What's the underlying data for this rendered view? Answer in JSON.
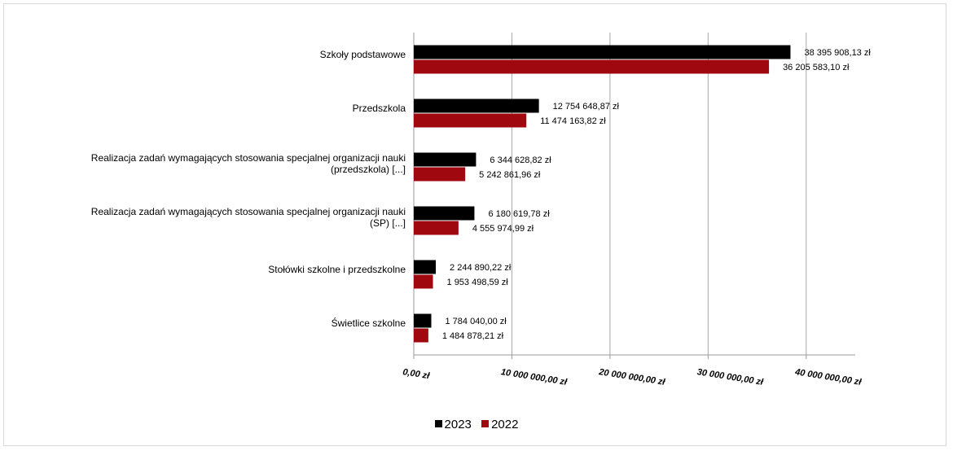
{
  "chart_data": {
    "type": "bar",
    "orientation": "horizontal",
    "categories": [
      [
        "Szkoły podstawowe"
      ],
      [
        "Przedszkola"
      ],
      [
        "Realizacja zadań wymagających stosowania specjalnej organizacji nauki",
        "(przedszkola) [...]"
      ],
      [
        "Realizacja zadań wymagających stosowania specjalnej organizacji nauki",
        "(SP) [...]"
      ],
      [
        "Stołówki szkolne i przedszkolne"
      ],
      [
        "Świetlice szkolne"
      ]
    ],
    "series": [
      {
        "name": "2023",
        "color": "#000000",
        "values": [
          38395908.13,
          12754648.87,
          6344628.82,
          6180619.78,
          2244890.22,
          1784040.0
        ],
        "labels": [
          "38 395 908,13 zł",
          "12 754 648,87 zł",
          "6 344 628,82 zł",
          "6 180 619,78 zł",
          "2 244 890,22 zł",
          "1 784 040,00 zł"
        ]
      },
      {
        "name": "2022",
        "color": "#a0080f",
        "values": [
          36205583.1,
          11474163.82,
          5242861.96,
          4555974.99,
          1953498.59,
          1484878.21
        ],
        "labels": [
          "36 205 583,10 zł",
          "11 474 163,82 zł",
          "5 242 861,96 zł",
          "4 555 974,99 zł",
          "1 953 498,59 zł",
          "1 484 878,21 zł"
        ]
      }
    ],
    "xlim": [
      0,
      45000000
    ],
    "ticks": [
      0,
      10000000,
      20000000,
      30000000,
      40000000
    ],
    "tick_labels": [
      "0,00 zł",
      "10 000 000,00 zł",
      "20 000 000,00 zł",
      "30 000 000,00 zł",
      "40 000 000,00 zł"
    ],
    "grid": true,
    "legend_position": "bottom"
  }
}
